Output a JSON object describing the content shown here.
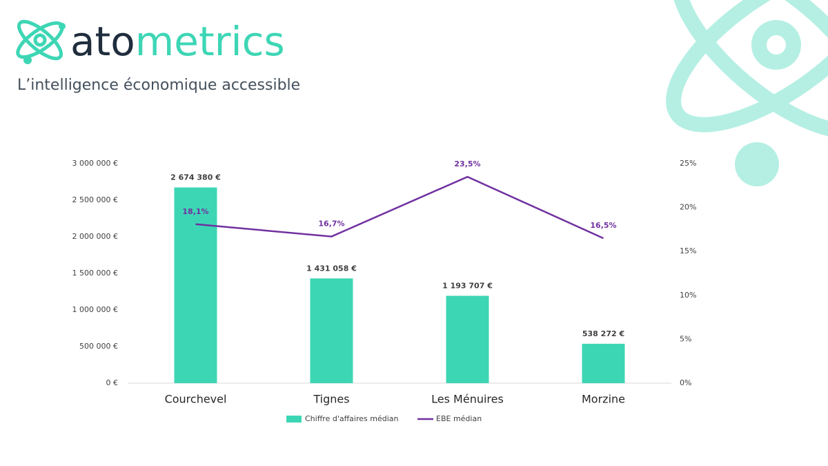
{
  "header": {
    "brand": [
      "ato",
      "metrics"
    ],
    "tagline": "L’intelligence économique accessible"
  },
  "chart_data": {
    "type": "combo",
    "categories": [
      "Courchevel",
      "Tignes",
      "Les Ménuires",
      "Morzine"
    ],
    "series": [
      {
        "name": "Chiffre d'affaires médian",
        "type": "bar",
        "color": "#3dd6b5",
        "values": [
          2674380,
          1431058,
          1193707,
          538272
        ],
        "value_labels": [
          "2 674 380 €",
          "1 431 058 €",
          "1 193 707 €",
          "538 272 €"
        ]
      },
      {
        "name": "EBE médian",
        "type": "line",
        "axis": "y2",
        "color": "#7030a0",
        "values": [
          18.1,
          16.7,
          23.5,
          16.5
        ],
        "value_labels": [
          "18,1%",
          "16,7%",
          "23,5%",
          "16,5%"
        ]
      }
    ],
    "ylim": [
      0,
      3000000
    ],
    "yticks": [
      {
        "value": 0,
        "label": "0 €"
      },
      {
        "value": 500000,
        "label": "500 000 €"
      },
      {
        "value": 1000000,
        "label": "1 000 000 €"
      },
      {
        "value": 1500000,
        "label": "1 500 000 €"
      },
      {
        "value": 2000000,
        "label": "2 000 000 €"
      },
      {
        "value": 2500000,
        "label": "2 500 000 €"
      },
      {
        "value": 3000000,
        "label": "3 000 000 €"
      }
    ],
    "y2lim": [
      0,
      25
    ],
    "y2ticks": [
      {
        "value": 0,
        "label": "0%"
      },
      {
        "value": 5,
        "label": "5%"
      },
      {
        "value": 10,
        "label": "10%"
      },
      {
        "value": 15,
        "label": "15%"
      },
      {
        "value": 20,
        "label": "20%"
      },
      {
        "value": 25,
        "label": "25%"
      }
    ],
    "legend": "bottom"
  }
}
